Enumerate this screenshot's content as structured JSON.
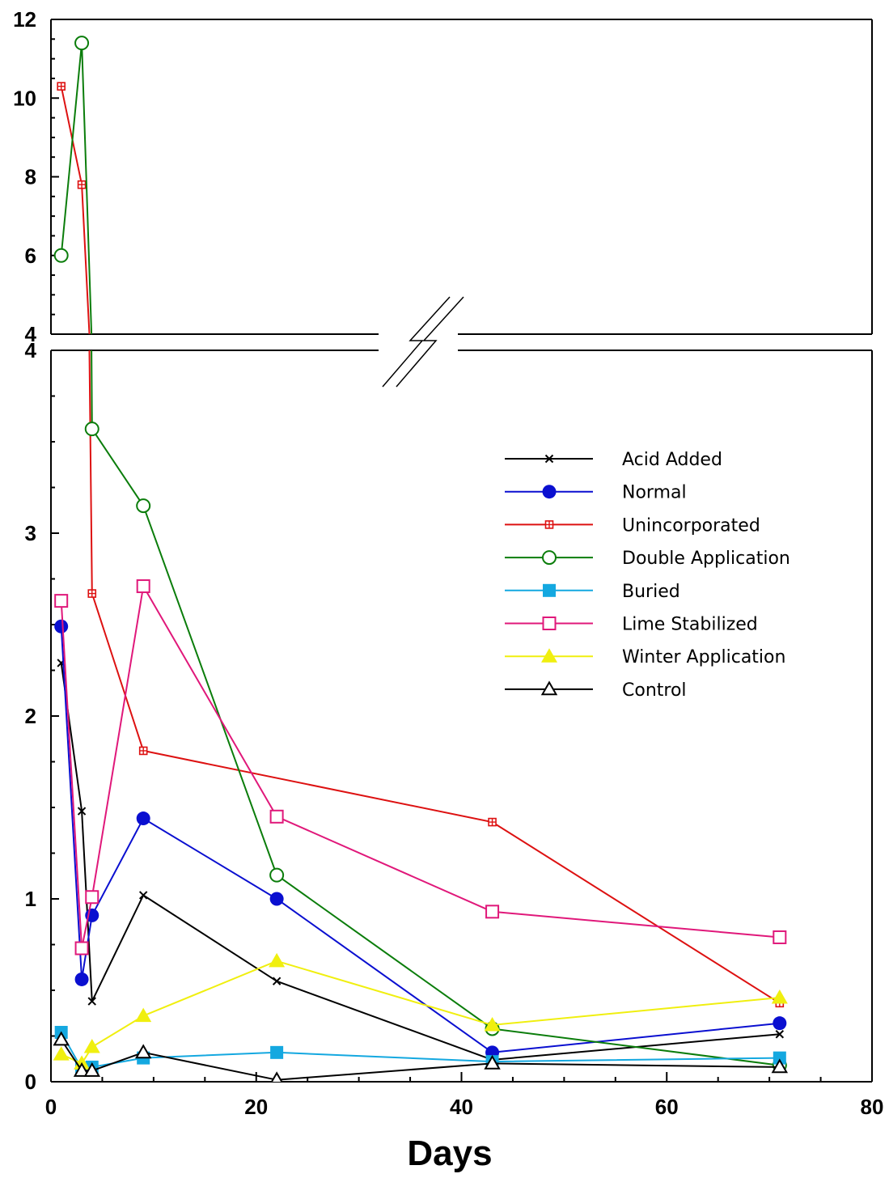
{
  "chart_data": {
    "type": "line",
    "xlabel": "Days",
    "ylabel": "",
    "xlim": [
      0,
      80
    ],
    "x_ticks": [
      "0",
      "20",
      "40",
      "60",
      "80"
    ],
    "ylim_lower": [
      0,
      4
    ],
    "ylim_upper": [
      4,
      12
    ],
    "y_ticks_lower": [
      "0",
      "1",
      "2",
      "3",
      "4"
    ],
    "y_ticks_upper": [
      "4",
      "6",
      "8",
      "10",
      "12"
    ],
    "axis_break": true,
    "legend_position": "upper-right",
    "series": [
      {
        "name": "Acid Added",
        "color": "#000000",
        "marker": "x",
        "x": [
          1,
          3,
          4,
          9,
          22,
          43,
          71
        ],
        "y": [
          2.29,
          1.48,
          0.44,
          1.02,
          0.55,
          0.12,
          0.26
        ]
      },
      {
        "name": "Normal",
        "color": "#0a0fd0",
        "marker": "filled-circle",
        "x": [
          1,
          3,
          4,
          9,
          22,
          43,
          71
        ],
        "y": [
          2.49,
          0.56,
          0.91,
          1.44,
          1.0,
          0.16,
          0.32
        ]
      },
      {
        "name": "Unincorporated",
        "color": "#dd1111",
        "marker": "boxed-plus",
        "x": [
          1,
          3,
          4,
          9,
          43,
          71
        ],
        "y": [
          10.3,
          7.8,
          2.67,
          1.81,
          1.42,
          0.43
        ]
      },
      {
        "name": "Double Application",
        "color": "#0b7d0b",
        "marker": "open-circle",
        "x": [
          1,
          3,
          4,
          9,
          22,
          43,
          71
        ],
        "y": [
          6.0,
          11.4,
          3.57,
          3.15,
          1.13,
          0.29,
          0.09
        ]
      },
      {
        "name": "Buried",
        "color": "#14a8e0",
        "marker": "filled-square",
        "x": [
          1,
          3,
          4,
          9,
          22,
          43,
          71
        ],
        "y": [
          0.27,
          0.07,
          0.08,
          0.13,
          0.16,
          0.11,
          0.13
        ]
      },
      {
        "name": "Lime Stabilized",
        "color": "#e0187a",
        "marker": "open-square",
        "x": [
          1,
          3,
          4,
          9,
          22,
          43,
          71
        ],
        "y": [
          2.63,
          0.73,
          1.01,
          2.71,
          1.45,
          0.93,
          0.79
        ]
      },
      {
        "name": "Winter Application",
        "color": "#f0ef0f",
        "marker": "filled-triangle",
        "x": [
          1,
          3,
          4,
          9,
          22,
          43,
          71
        ],
        "y": [
          0.15,
          0.1,
          0.19,
          0.36,
          0.66,
          0.31,
          0.46
        ]
      },
      {
        "name": "Control",
        "color": "#000000",
        "marker": "open-triangle",
        "x": [
          1,
          3,
          4,
          9,
          22,
          43,
          71
        ],
        "y": [
          0.23,
          0.06,
          0.06,
          0.16,
          0.01,
          0.1,
          0.08
        ]
      }
    ]
  }
}
